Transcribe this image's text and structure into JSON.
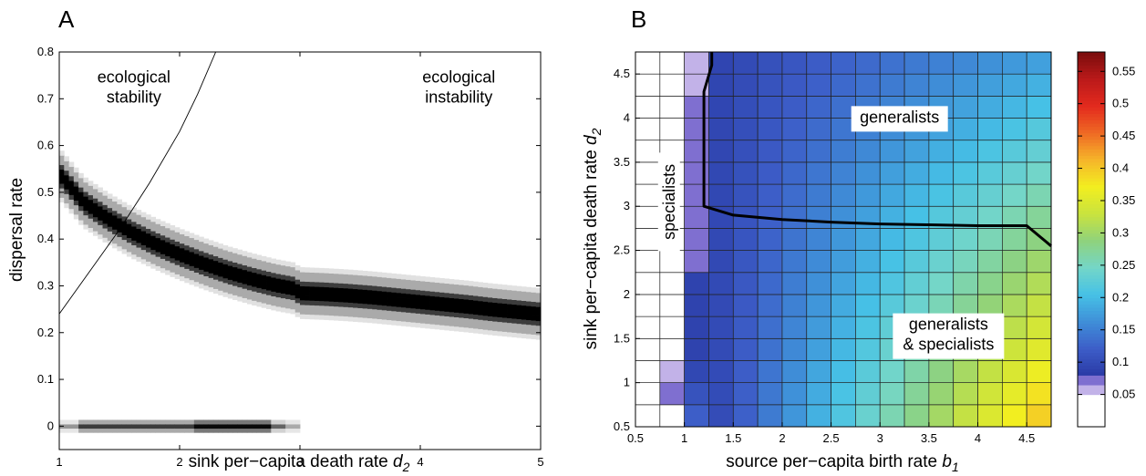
{
  "chart_data": [
    {
      "type": "heatmap",
      "panel_label": "A",
      "xlabel": "sink per−capita death rate ",
      "xlabel_var": "d",
      "xlabel_sub": "2",
      "ylabel": "dispersal rate",
      "xlim": [
        1,
        5
      ],
      "ylim": [
        -0.05,
        0.8
      ],
      "xticks": [
        1,
        2,
        3,
        4,
        5
      ],
      "xtick_labels": [
        "1",
        "2",
        "3",
        "4",
        "5"
      ],
      "yticks": [
        0,
        0.1,
        0.2,
        0.3,
        0.4,
        0.5,
        0.6,
        0.7,
        0.8
      ],
      "ytick_labels": [
        "0",
        "0.1",
        "0.2",
        "0.3",
        "0.4",
        "0.5",
        "0.6",
        "0.7",
        "0.8"
      ],
      "annotations": [
        {
          "lines": [
            "ecological",
            "stability"
          ],
          "x": 1.62,
          "y": 0.735
        },
        {
          "lines": [
            "ecological",
            "instability"
          ],
          "x": 4.32,
          "y": 0.735
        }
      ],
      "evolutionary_branch": {
        "x": [
          1.0,
          1.1,
          1.2,
          1.4,
          1.6,
          1.8,
          2.0,
          2.2,
          2.4,
          2.6,
          2.8,
          2.95,
          3.0,
          3.2,
          3.4,
          3.6,
          3.8,
          4.0,
          4.2,
          4.4,
          4.6,
          4.8,
          5.0
        ],
        "y": [
          0.54,
          0.51,
          0.48,
          0.445,
          0.415,
          0.39,
          0.368,
          0.348,
          0.33,
          0.315,
          0.302,
          0.295,
          0.285,
          0.283,
          0.28,
          0.276,
          0.271,
          0.266,
          0.261,
          0.256,
          0.25,
          0.245,
          0.24
        ]
      },
      "zero_branch": {
        "x": [
          1.0,
          3.0
        ],
        "y": 0.0
      },
      "stability_boundary": {
        "x": [
          1.0,
          1.25,
          1.5,
          1.75,
          2.0,
          2.15,
          2.3
        ],
        "y": [
          0.24,
          0.33,
          0.42,
          0.52,
          0.63,
          0.71,
          0.8
        ]
      }
    },
    {
      "type": "heatmap",
      "panel_label": "B",
      "xlabel": "source per−capita birth rate ",
      "xlabel_var": "b",
      "xlabel_sub": "1",
      "ylabel": "sink per−capita death rate ",
      "ylabel_var": "d",
      "ylabel_sub": "2",
      "xlim": [
        0.5,
        4.75
      ],
      "ylim": [
        0.5,
        4.75
      ],
      "xticks": [
        0.5,
        1,
        1.5,
        2,
        2.5,
        3,
        3.5,
        4,
        4.5
      ],
      "xtick_labels": [
        "0.5",
        "1",
        "1.5",
        "2",
        "2.5",
        "3",
        "3.5",
        "4",
        "4.5"
      ],
      "yticks": [
        0.5,
        1,
        1.5,
        2,
        2.5,
        3,
        3.5,
        4,
        4.5
      ],
      "ytick_labels": [
        "0.5",
        "1",
        "1.5",
        "2",
        "2.5",
        "3",
        "3.5",
        "4",
        "4.5"
      ],
      "grid_x_start": 0.5,
      "grid_y_start": 0.5,
      "grid_step": 0.25,
      "grid_cols": 17,
      "grid_rows": 17,
      "annotations": [
        {
          "lines": [
            "generalists"
          ],
          "x": 3.2,
          "y": 3.95
        },
        {
          "lines": [
            "generalists",
            "& specialists"
          ],
          "x": 3.7,
          "y": 1.6
        },
        {
          "lines": [
            "specialists"
          ],
          "x": 0.88,
          "y": 3.05,
          "rotated": true
        }
      ],
      "boundary_line": {
        "x": [
          1.28,
          1.28,
          1.2,
          1.2,
          1.2,
          1.5,
          2.0,
          2.5,
          3.0,
          3.5,
          4.0,
          4.5,
          4.75
        ],
        "y": [
          4.75,
          4.6,
          4.3,
          3.5,
          3.0,
          2.9,
          2.85,
          2.82,
          2.8,
          2.79,
          2.78,
          2.78,
          2.55
        ]
      },
      "colorbar": {
        "min": 0,
        "max": 0.58,
        "ticks": [
          0.05,
          0.1,
          0.15,
          0.2,
          0.25,
          0.3,
          0.35,
          0.4,
          0.45,
          0.5,
          0.55
        ],
        "tick_labels": [
          "0.05",
          "0.1",
          "0.15",
          "0.2",
          "0.25",
          "0.3",
          "0.35",
          "0.4",
          "0.45",
          "0.5",
          "0.55"
        ],
        "below_min_color": "#ffffff"
      },
      "palette": {
        "low": "#c2b2e8",
        "mid_low": "#7f6fd0",
        "stops": [
          "#2a3aa6",
          "#3d5ec8",
          "#3f8fd8",
          "#46c1e6",
          "#74d6c8",
          "#8fd27c",
          "#c9e33e",
          "#f2ee20",
          "#f6b52a",
          "#ef6a24",
          "#e32a1e",
          "#bb1a1a",
          "#7a0c0c"
        ]
      }
    }
  ]
}
